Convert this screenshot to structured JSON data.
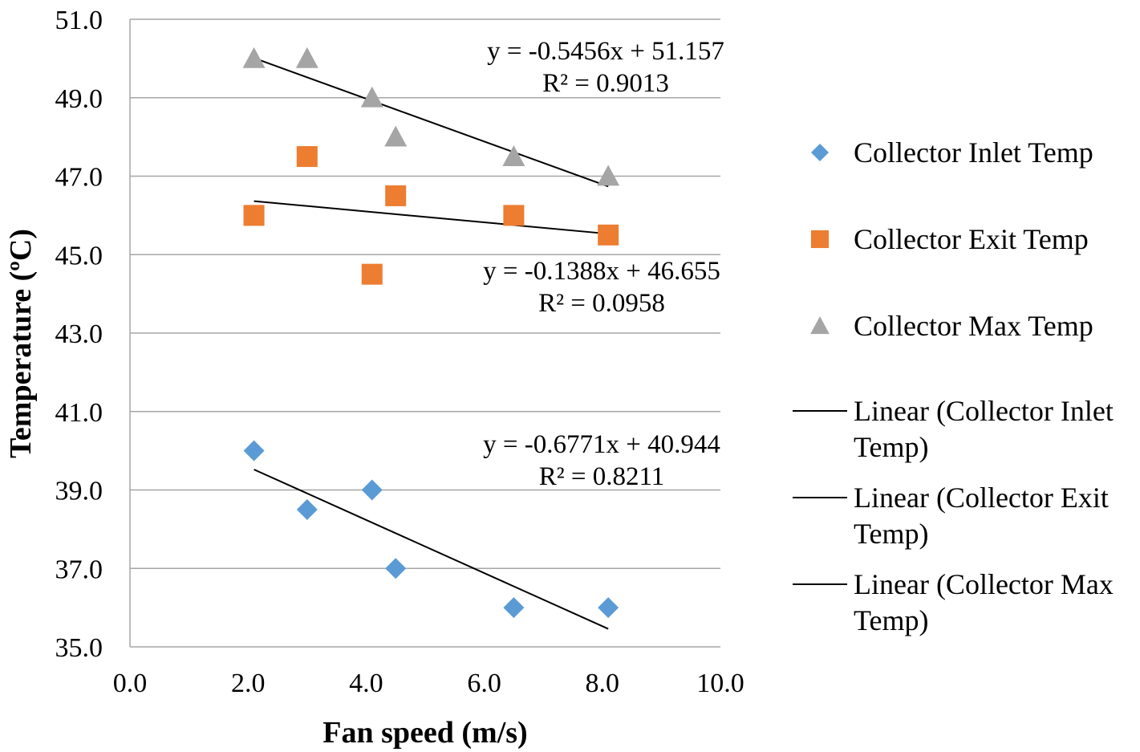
{
  "chart_data": {
    "type": "scatter",
    "title": "",
    "xlabel": "Fan speed (m/s)",
    "ylabel": "Temperature (ºC)",
    "xlim": [
      0,
      10
    ],
    "ylim": [
      35,
      51
    ],
    "x_ticks": [
      "0.0",
      "2.0",
      "4.0",
      "6.0",
      "8.0",
      "10.0"
    ],
    "x_tick_values": [
      0,
      2,
      4,
      6,
      8,
      10
    ],
    "y_ticks": [
      "35.0",
      "37.0",
      "39.0",
      "41.0",
      "43.0",
      "45.0",
      "47.0",
      "49.0",
      "51.0"
    ],
    "y_tick_values": [
      35,
      37,
      39,
      41,
      43,
      45,
      47,
      49,
      51
    ],
    "grid": "horizontal",
    "legend_position": "right",
    "series": [
      {
        "name": "Collector Inlet Temp",
        "marker": "diamond",
        "color": "#5B9BD5",
        "x": [
          2.1,
          3.0,
          4.1,
          4.5,
          6.5,
          8.1
        ],
        "y": [
          40.0,
          38.5,
          39.0,
          37.0,
          36.0,
          36.0
        ],
        "trend_label": "Linear (Collector Inlet Temp)",
        "trend": {
          "slope": -0.6771,
          "intercept": 40.944,
          "x_range": [
            2.1,
            8.1
          ]
        },
        "equation": "y = -0.6771x + 40.944",
        "r2": "R² = 0.8211"
      },
      {
        "name": "Collector Exit Temp",
        "marker": "square",
        "color": "#ED7D31",
        "x": [
          2.1,
          3.0,
          4.1,
          4.5,
          6.5,
          8.1
        ],
        "y": [
          46.0,
          47.5,
          44.5,
          46.5,
          46.0,
          45.5
        ],
        "trend_label": "Linear (Collector Exit Temp)",
        "trend": {
          "slope": -0.1388,
          "intercept": 46.655,
          "x_range": [
            2.1,
            8.1
          ]
        },
        "equation": "y = -0.1388x + 46.655",
        "r2": "R² = 0.0958"
      },
      {
        "name": "Collector Max Temp",
        "marker": "triangle",
        "color": "#A5A5A5",
        "x": [
          2.1,
          3.0,
          4.1,
          4.5,
          6.5,
          8.1
        ],
        "y": [
          50.0,
          50.0,
          49.0,
          48.0,
          47.5,
          47.0
        ],
        "trend_label": "Linear (Collector Max Temp)",
        "trend": {
          "slope": -0.5456,
          "intercept": 51.157,
          "x_range": [
            2.1,
            8.1
          ]
        },
        "equation": "y = -0.5456x + 51.157",
        "r2": "R² = 0.9013"
      }
    ],
    "legend": [
      {
        "label": "Collector Inlet Temp",
        "kind": "marker",
        "series": 0
      },
      {
        "label": "Collector Exit Temp",
        "kind": "marker",
        "series": 1
      },
      {
        "label": "Collector Max Temp",
        "kind": "marker",
        "series": 2
      },
      {
        "label_lines": [
          "Linear (Collector Inlet",
          "Temp)"
        ],
        "kind": "line",
        "series": 0
      },
      {
        "label_lines": [
          "Linear (Collector Exit",
          "Temp)"
        ],
        "kind": "line",
        "series": 1
      },
      {
        "label_lines": [
          "Linear (Collector Max",
          "Temp)"
        ],
        "kind": "line",
        "series": 2
      }
    ],
    "colors": {
      "grid": "#A6A6A6",
      "axis": "#A6A6A6",
      "trendline": "#000000"
    }
  }
}
